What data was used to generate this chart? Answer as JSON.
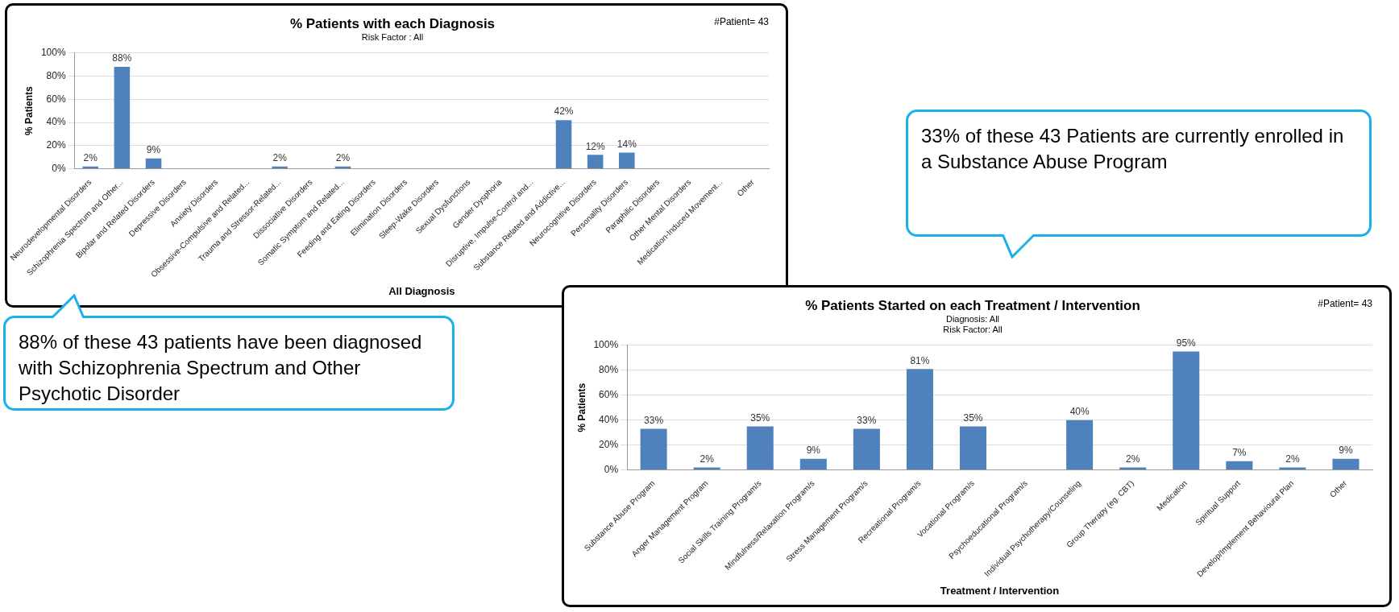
{
  "chart_data": [
    {
      "type": "bar",
      "title": "% Patients with each Diagnosis",
      "subtitle": "Risk Factor : All",
      "xlabel": "All Diagnosis",
      "ylabel": "% Patients",
      "categories": [
        "Neurodevelopmental Disorders",
        "Schizophrenia Spectrum and Other...",
        "Bipolar and Related Disorders",
        "Depressive Disorders",
        "Anxiety Disorders",
        "Obsessive-Compulsive and Related...",
        "Trauma and Stressor-Related...",
        "Dissociative Disorders",
        "Somatic Symptom and Related...",
        "Feeding and Eating Disorders",
        "Elimination Disorders",
        "Sleep-Wake Disorders",
        "Sexual Dysfunctions",
        "Gender Dysphoria",
        "Disruptive, Impulse-Control and...",
        "Substance Related and Addictive...",
        "Neurocognitive Disorders",
        "Personality Disorders",
        "Paraphilic Disorders",
        "Other Mental Disorders",
        "Medication-Induced Movement...",
        "Other"
      ],
      "values": [
        2,
        88,
        9,
        0,
        0,
        0,
        2,
        0,
        2,
        0,
        0,
        0,
        0,
        0,
        0,
        42,
        12,
        14,
        0,
        0,
        0,
        0
      ],
      "value_labels": [
        "2%",
        "88%",
        "9%",
        null,
        null,
        null,
        "2%",
        null,
        "2%",
        null,
        null,
        null,
        null,
        null,
        null,
        "42%",
        "12%",
        "14%",
        null,
        null,
        null,
        null
      ],
      "color": "#4f81bd",
      "ylim": [
        0,
        100
      ],
      "yticks": [
        {
          "value": 0,
          "label": "0%"
        },
        {
          "value": 20,
          "label": "20%"
        },
        {
          "value": 40,
          "label": "40%"
        },
        {
          "value": 60,
          "label": "60%"
        },
        {
          "value": 80,
          "label": "80%"
        },
        {
          "value": 100,
          "label": "100%"
        }
      ],
      "grid": "y",
      "annotations": [
        "#Patient= 43",
        "88% of these 43 patients have been diagnosed with Schizophrenia Spectrum and Other Psychotic Disorder"
      ]
    },
    {
      "type": "bar",
      "title": "% Patients Started on each Treatment / Intervention",
      "subtitle": "Diagnosis: All\nRisk Factor: All",
      "xlabel": "Treatment / Intervention",
      "ylabel": "% Patients",
      "categories": [
        "Substance Abuse Program",
        "Anger Management Program",
        "Social Skills Training Program/s",
        "Mindfulness/Relaxation Program/s",
        "Stress Management Program/s",
        "Recreational Program/s",
        "Vocational Program/s",
        "Psychoeducational Program/s",
        "Individual Psychotherapy/Counseling",
        "Group Therapy (eg. CBT)",
        "Medication",
        "Spiritual Support",
        "Develop/Implement Behavioural Plan",
        "Other"
      ],
      "values": [
        33,
        2,
        35,
        9,
        33,
        81,
        35,
        0,
        40,
        2,
        95,
        7,
        2,
        9
      ],
      "value_labels": [
        "33%",
        "2%",
        "35%",
        "9%",
        "33%",
        "81%",
        "35%",
        null,
        "40%",
        "2%",
        "95%",
        "7%",
        "2%",
        "9%"
      ],
      "color": "#4f81bd",
      "ylim": [
        0,
        100
      ],
      "yticks": [
        {
          "value": 0,
          "label": "0%"
        },
        {
          "value": 20,
          "label": "20%"
        },
        {
          "value": 40,
          "label": "40%"
        },
        {
          "value": 60,
          "label": "60%"
        },
        {
          "value": 80,
          "label": "80%"
        },
        {
          "value": 100,
          "label": "100%"
        }
      ],
      "grid": "y",
      "annotations": [
        "#Patient= 43",
        "33% of these 43 Patients are currently enrolled in a Substance Abuse Program"
      ]
    }
  ]
}
